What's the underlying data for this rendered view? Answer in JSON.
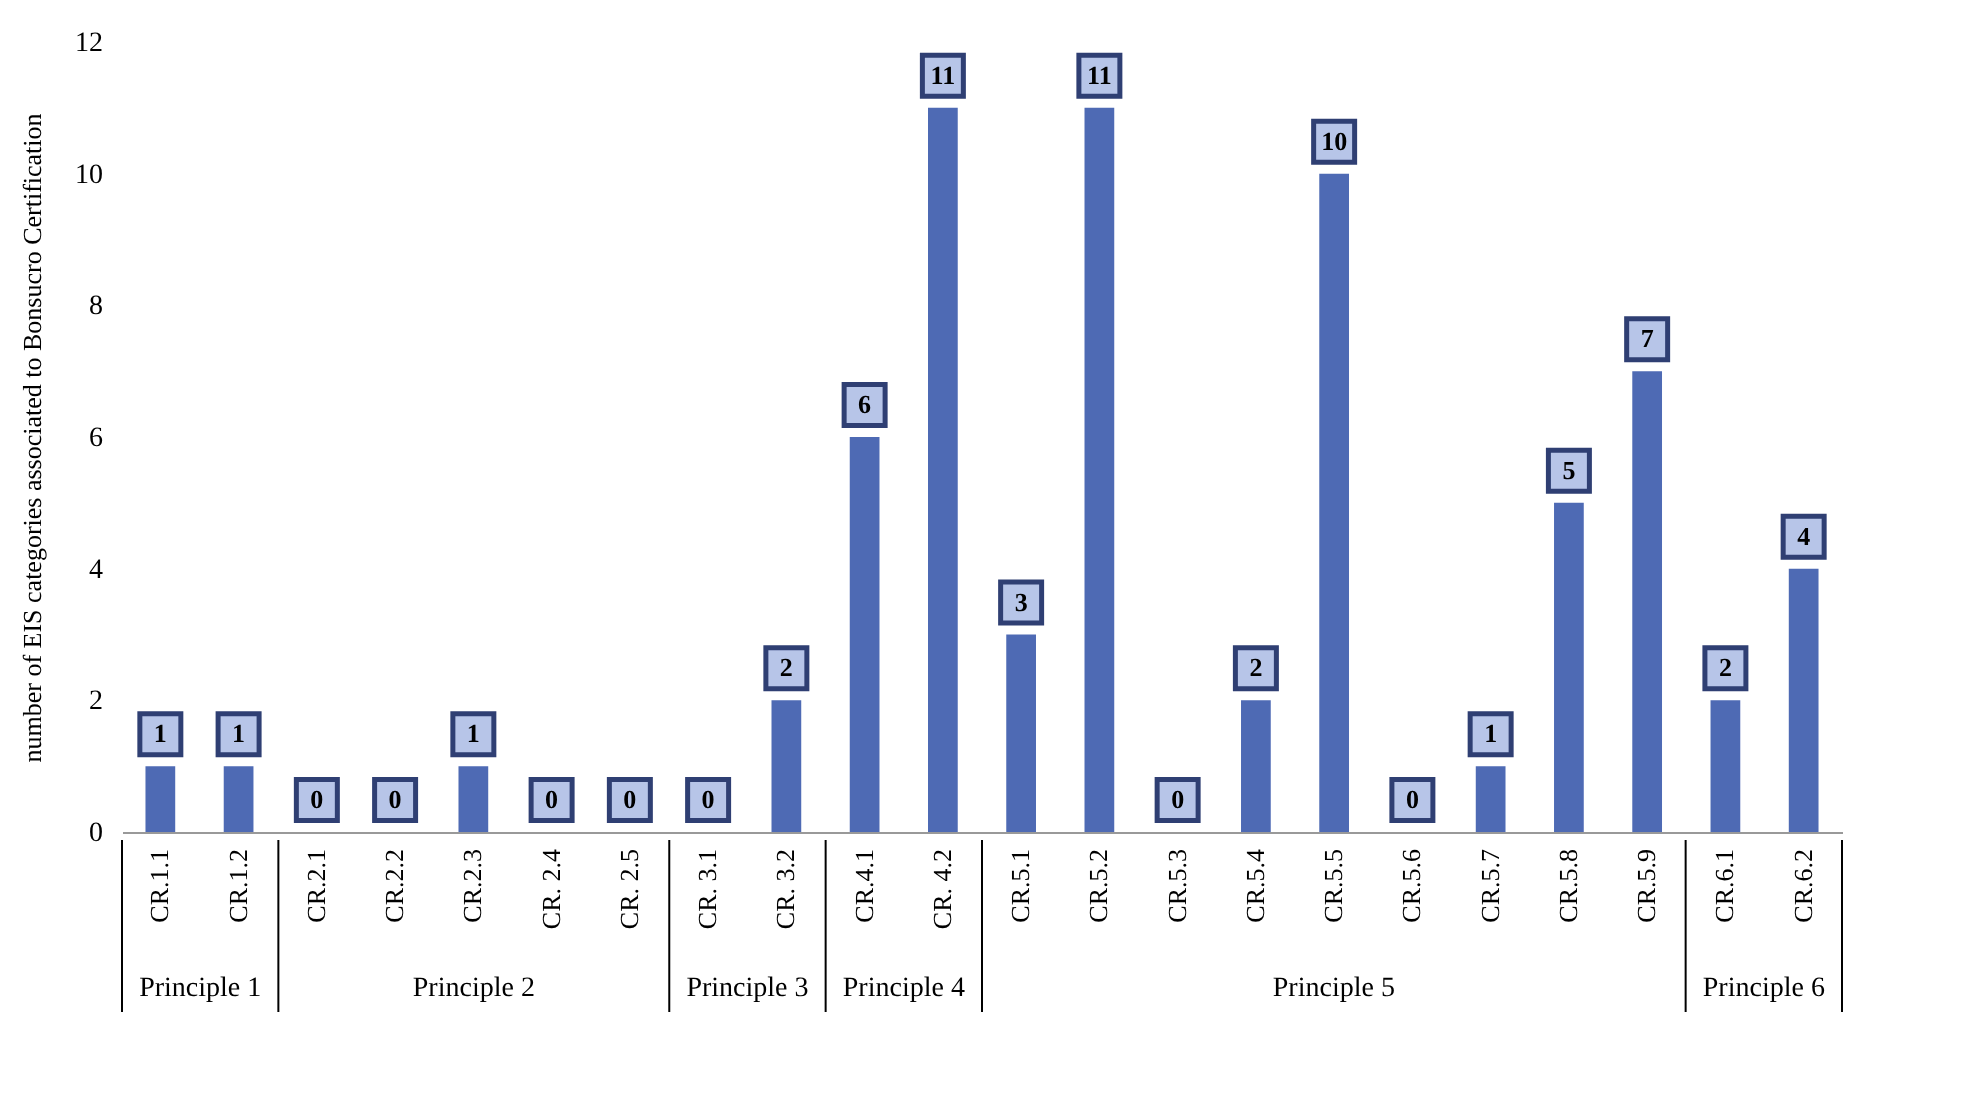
{
  "chart_data": {
    "type": "bar",
    "ylabel": "number of EIS categories associated to Bonsucro Certification",
    "categories": [
      "CR.1.1",
      "CR.1.2",
      "CR.2.1",
      "CR.2.2",
      "CR.2.3",
      "CR. 2.4",
      "CR. 2.5",
      "CR. 3.1",
      "CR. 3.2",
      "CR.4.1",
      "CR. 4.2",
      "CR.5.1",
      "CR.5.2",
      "CR.5.3",
      "CR.5.4",
      "CR.5.5",
      "CR.5.6",
      "CR.5.7",
      "CR.5.8",
      "CR.5.9",
      "CR.6.1",
      "CR.6.2"
    ],
    "values": [
      1,
      1,
      0,
      0,
      1,
      0,
      0,
      0,
      2,
      6,
      11,
      3,
      11,
      0,
      2,
      10,
      0,
      1,
      5,
      7,
      2,
      4
    ],
    "color": "#4e6ab4",
    "ylim": [
      0,
      12
    ],
    "yticks": [
      0,
      2,
      4,
      6,
      8,
      10,
      12
    ],
    "data_labels": true,
    "annotations": [
      "Principle 1",
      "Principle 2",
      "Principle 3",
      "Principle 4",
      "Principle 5",
      "Principle 6"
    ]
  }
}
